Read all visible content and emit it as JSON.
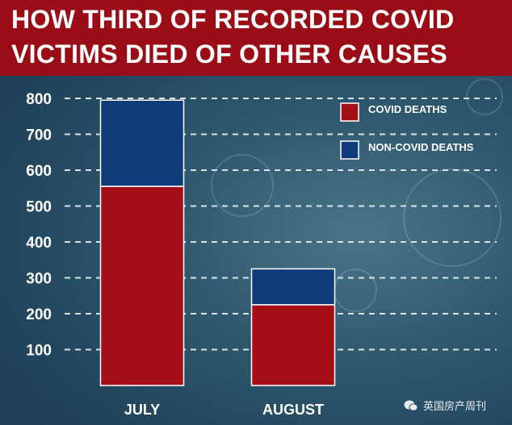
{
  "header": {
    "title_line1": "HOW THIRD OF RECORDED COVID",
    "title_line2": "VICTIMS DIED OF OTHER CAUSES"
  },
  "watermark": {
    "text": "英国房产周刊"
  },
  "colors": {
    "title_bg": "#9b0d16",
    "covid": "#a50d17",
    "non_covid": "#0f3b7a",
    "grid": "#d8e3ea",
    "text": "#ffffff"
  },
  "chart_data": {
    "type": "bar",
    "stacked": true,
    "title": "HOW THIRD OF RECORDED COVID VICTIMS DIED OF OTHER CAUSES",
    "xlabel": "",
    "ylabel": "",
    "categories": [
      "JULY",
      "AUGUST"
    ],
    "series": [
      {
        "name": "COVID DEATHS",
        "color": "#a50d17",
        "values": [
          555,
          225
        ]
      },
      {
        "name": "NON-COVID DEATHS",
        "color": "#0f3b7a",
        "values": [
          240,
          100
        ]
      }
    ],
    "yticks": [
      100,
      200,
      300,
      400,
      500,
      600,
      700,
      800
    ],
    "ylim": [
      0,
      800
    ],
    "grid": true,
    "legend_position": "top-right"
  }
}
